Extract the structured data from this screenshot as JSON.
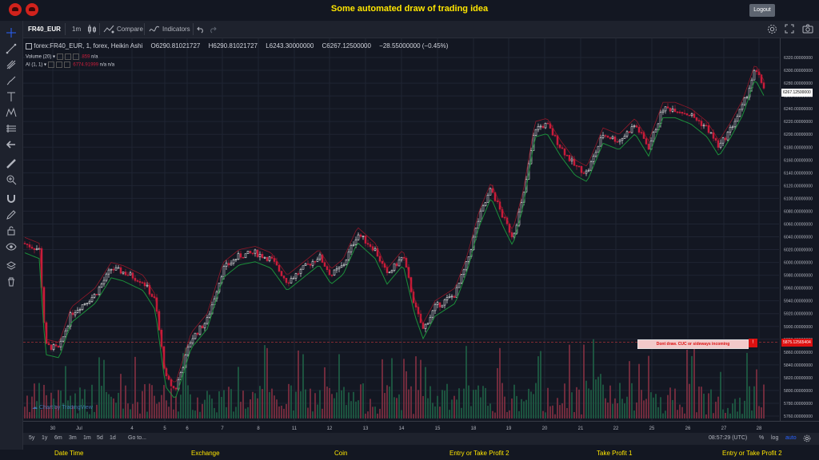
{
  "app": {
    "title": "Some automated draw of trading idea",
    "logout_label": "Logout"
  },
  "toolbar": {
    "symbol": "FR40_EUR",
    "interval": "1m",
    "compare_label": "Compare",
    "indicators_label": "Indicators"
  },
  "legend": {
    "title": "forex:FR40_EUR, 1, forex, Heikin Ashi",
    "open": "O6290.81021727",
    "high": "H6290.81021727",
    "low": "L6243.30000000",
    "close": "C6267.12500000",
    "change": "−28.55000000 (−0.45%)"
  },
  "indicators": [
    {
      "name": "Volume (20)",
      "value": "859",
      "extra": "n/a"
    },
    {
      "name": "AI (1, 1)",
      "value": "6774.91999",
      "extra": "n/a  n/a"
    }
  ],
  "watermark": "Chart by TradingView",
  "price_axis": {
    "ticks": [
      "6320.00000000",
      "6300.00000000",
      "6280.00000000",
      "6260.00000000",
      "6240.00000000",
      "6220.00000000",
      "6200.00000000",
      "6180.00000000",
      "6160.00000000",
      "6140.00000000",
      "6120.00000000",
      "6100.00000000",
      "6080.00000000",
      "6060.00000000",
      "6040.00000000",
      "6020.00000000",
      "6000.00000000",
      "5980.00000000",
      "5960.00000000",
      "5940.00000000",
      "5920.00000000",
      "5900.00000000",
      "5880.00000000",
      "5860.00000000",
      "5840.00000000",
      "5820.00000000",
      "5800.00000000",
      "5780.00000000",
      "5760.00000000"
    ],
    "current_price": "6267.12500000",
    "line_price": "5875.12565404"
  },
  "time_axis": {
    "labels": [
      "30",
      "Jul",
      "4",
      "5",
      "6",
      "7",
      "8",
      "11",
      "12",
      "13",
      "14",
      "15",
      "18",
      "19",
      "20",
      "21",
      "22",
      "25",
      "26",
      "27",
      "28"
    ]
  },
  "annotation": {
    "text": "Dont draw. CUC or sideways incoming",
    "marker": "!"
  },
  "range_bar": {
    "ranges": [
      "5y",
      "1y",
      "6m",
      "3m",
      "1m",
      "5d",
      "1d"
    ],
    "goto": "Go to...",
    "time": "08:57:29 (UTC)",
    "percent": "%",
    "log": "log",
    "auto": "auto"
  },
  "footer": {
    "columns": [
      "Date Time",
      "Exchange",
      "Coin",
      "Entry or Take Profit 2",
      "Take Profit 1",
      "Entry or Take Profit 2"
    ]
  },
  "colors": {
    "up": "#ffffff",
    "down": "#c91d3b",
    "bg": "#131722",
    "accent": "#ffe600",
    "ma_green": "#1b8f3a",
    "ma_red": "#b2182b"
  }
}
